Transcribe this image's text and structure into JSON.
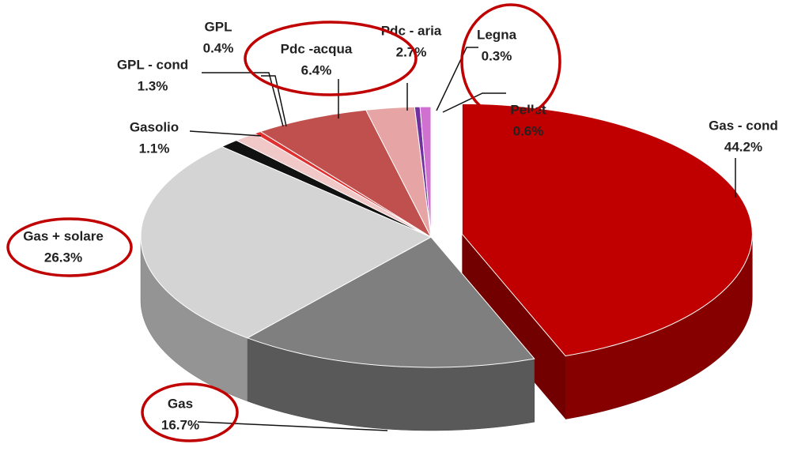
{
  "chart_data": {
    "type": "pie3d",
    "categories": [
      "Gas - cond",
      "Gas",
      "Gas + solare",
      "Gasolio",
      "GPL - cond",
      "GPL",
      "Pdc -acqua",
      "Pdc - aria",
      "Legna",
      "Pellet"
    ],
    "values": [
      44.2,
      16.7,
      26.3,
      1.1,
      1.3,
      0.4,
      6.4,
      2.7,
      0.3,
      0.6
    ],
    "value_labels": [
      "44.2%",
      "16.7%",
      "26.3%",
      "1.1%",
      "1.3%",
      "0.4%",
      "6.4%",
      "2.7%",
      "0.3%",
      "0.6%"
    ],
    "colors": [
      "#c00000",
      "#7f7f7f",
      "#d4d4d4",
      "#111111",
      "#f0c8c8",
      "#e03030",
      "#c0504d",
      "#e6a4a4",
      "#7030a0",
      "#d070d0"
    ],
    "exploded": [
      0
    ]
  }
}
